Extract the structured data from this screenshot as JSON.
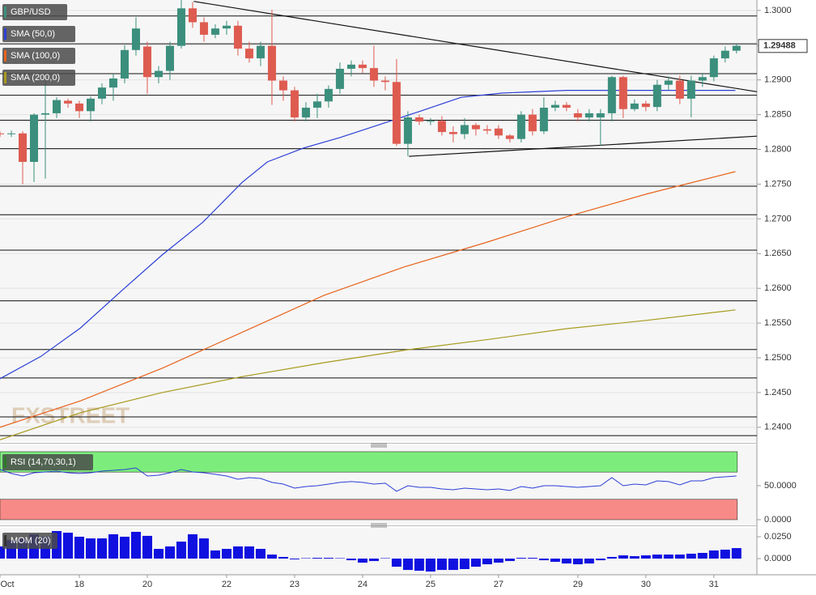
{
  "chart_data": [
    {
      "type": "candlestick",
      "title": "GBP/USD",
      "watermark": "FXSTREET",
      "colors": {
        "up": "#3b8f7c",
        "down": "#de5b50"
      },
      "x": [
        0,
        1,
        2,
        3,
        4,
        5,
        6,
        7,
        8,
        9,
        10,
        11,
        12,
        13,
        14,
        15,
        16,
        17,
        18,
        19,
        20,
        21,
        22,
        23,
        24,
        25,
        26,
        27,
        28,
        29,
        30,
        31,
        32,
        33,
        34,
        35,
        36,
        37,
        38,
        39,
        40,
        41,
        42,
        43,
        44,
        45,
        46,
        47,
        48,
        49,
        50,
        51,
        52,
        53,
        54,
        55,
        56,
        57,
        58,
        59,
        60,
        61,
        62,
        63,
        64,
        65
      ],
      "open": [
        1.2823,
        1.2822,
        1.2823,
        1.2782,
        1.285,
        1.2852,
        1.287,
        1.2866,
        1.2855,
        1.2873,
        1.2889,
        1.2902,
        1.2943,
        1.2948,
        1.2904,
        1.2913,
        1.2949,
        1.3003,
        1.2983,
        1.2965,
        1.2974,
        1.2978,
        1.2945,
        1.2931,
        1.2949,
        1.2899,
        1.2885,
        1.2846,
        1.286,
        1.2869,
        1.2887,
        1.2916,
        1.2922,
        1.2917,
        1.2899,
        1.2897,
        1.2808,
        1.2846,
        1.284,
        1.2841,
        1.2825,
        1.2822,
        1.2835,
        1.2829,
        1.283,
        1.282,
        1.2815,
        1.285,
        1.2826,
        1.286,
        1.2864,
        1.2852,
        1.2846,
        1.2846,
        1.2852,
        1.2904,
        1.2858,
        1.2866,
        1.2861,
        1.2893,
        1.2899,
        1.2873,
        1.2899,
        1.2904,
        1.2931,
        1.2942
      ],
      "high": [
        1.2826,
        1.2827,
        1.2826,
        1.2852,
        1.2898,
        1.2875,
        1.2873,
        1.287,
        1.2876,
        1.2895,
        1.2908,
        1.295,
        1.299,
        1.2955,
        1.292,
        1.2955,
        1.3015,
        1.3012,
        1.299,
        1.298,
        1.2985,
        1.2985,
        1.2955,
        1.2955,
        1.3001,
        1.2905,
        1.289,
        1.2868,
        1.288,
        1.2892,
        1.2925,
        1.2928,
        1.2928,
        1.2949,
        1.2905,
        1.293,
        1.2855,
        1.285,
        1.2845,
        1.2848,
        1.2833,
        1.2845,
        1.2838,
        1.2835,
        1.2835,
        1.2822,
        1.2855,
        1.2858,
        1.2875,
        1.287,
        1.2868,
        1.2858,
        1.2858,
        1.2858,
        1.2906,
        1.2906,
        1.2872,
        1.287,
        1.29,
        1.2905,
        1.2906,
        1.2906,
        1.291,
        1.2935,
        1.2948,
        1.2952
      ],
      "low": [
        1.2818,
        1.2818,
        1.275,
        1.2753,
        1.2758,
        1.2845,
        1.286,
        1.2845,
        1.284,
        1.2865,
        1.287,
        1.2895,
        1.2935,
        1.288,
        1.2895,
        1.29,
        1.2945,
        1.2975,
        1.2955,
        1.296,
        1.2965,
        1.2935,
        1.2925,
        1.292,
        1.2864,
        1.287,
        1.284,
        1.284,
        1.2845,
        1.286,
        1.288,
        1.2905,
        1.291,
        1.289,
        1.2885,
        1.2805,
        1.279,
        1.2835,
        1.2835,
        1.282,
        1.281,
        1.2815,
        1.282,
        1.2822,
        1.2815,
        1.281,
        1.281,
        1.282,
        1.2822,
        1.2855,
        1.2855,
        1.284,
        1.284,
        1.2805,
        1.284,
        1.2845,
        1.2855,
        1.2855,
        1.2855,
        1.2885,
        1.2865,
        1.2846,
        1.289,
        1.2898,
        1.2925,
        1.2938
      ],
      "close": [
        1.2822,
        1.2823,
        1.2782,
        1.285,
        1.2852,
        1.2871,
        1.2866,
        1.2855,
        1.2873,
        1.2889,
        1.2902,
        1.2943,
        1.2974,
        1.2904,
        1.2913,
        1.2949,
        1.3003,
        1.2983,
        1.2965,
        1.2974,
        1.2978,
        1.2945,
        1.2931,
        1.2949,
        1.2899,
        1.2885,
        1.2846,
        1.286,
        1.2869,
        1.2887,
        1.2916,
        1.2922,
        1.2917,
        1.2899,
        1.2897,
        1.2808,
        1.2846,
        1.284,
        1.2841,
        1.2825,
        1.2822,
        1.2835,
        1.2829,
        1.2827,
        1.282,
        1.2815,
        1.285,
        1.2826,
        1.286,
        1.2864,
        1.286,
        1.2846,
        1.2852,
        1.2852,
        1.2904,
        1.2858,
        1.2866,
        1.2861,
        1.2893,
        1.2899,
        1.2873,
        1.2899,
        1.2904,
        1.2931,
        1.2942,
        1.2949
      ],
      "last_price": 1.29488,
      "overlays": [
        {
          "name": "SMA (50,0)",
          "color": "#2b3fd6",
          "x": [
            0,
            3.6,
            7.1,
            10.7,
            14.3,
            17.9,
            21.4,
            23.6,
            26.8,
            30,
            34.3,
            37.1,
            40.7,
            44.3,
            50,
            57.1,
            64.9
          ],
          "values": [
            1.247,
            1.2502,
            1.2543,
            1.2596,
            1.2648,
            1.2695,
            1.2753,
            1.2782,
            1.2802,
            1.2817,
            1.284,
            1.2855,
            1.2875,
            1.2881,
            1.2885,
            1.2885,
            1.2885
          ]
        },
        {
          "name": "SMA (100,0)",
          "color": "#e8621c",
          "x": [
            0,
            7.1,
            14.3,
            21.4,
            28.6,
            35.7,
            42.9,
            50,
            57.1,
            64.9
          ],
          "values": [
            1.24,
            1.2438,
            1.2485,
            1.2537,
            1.259,
            1.2631,
            1.2666,
            1.2703,
            1.2736,
            1.2768
          ]
        },
        {
          "name": "SMA (200,0)",
          "color": "#a89a1e",
          "x": [
            0,
            7.1,
            14.3,
            21.4,
            28.6,
            35.7,
            42.9,
            50,
            57.1,
            64.9
          ],
          "values": [
            1.2382,
            1.2421,
            1.245,
            1.2473,
            1.2493,
            1.2511,
            1.2526,
            1.2542,
            1.2554,
            1.2569
          ]
        }
      ],
      "trendlines": [
        {
          "x": [
            17.1,
            66.8
          ],
          "values": [
            1.3013,
            1.2883
          ]
        },
        {
          "x": [
            36.1,
            66.8
          ],
          "values": [
            1.279,
            1.2819
          ]
        }
      ],
      "levels": [
        1.2992,
        1.2952,
        1.2909,
        1.2878,
        1.2842,
        1.2801,
        1.2747,
        1.2706,
        1.2655,
        1.2582,
        1.2512,
        1.2471,
        1.2415,
        1.2388
      ],
      "xlim": [
        0,
        66.8
      ],
      "xticks": [
        {
          "value": 0,
          "label": "Oct"
        },
        {
          "value": 7,
          "label": "18"
        },
        {
          "value": 13,
          "label": "20"
        },
        {
          "value": 20,
          "label": "22"
        },
        {
          "value": 26,
          "label": "23"
        },
        {
          "value": 32,
          "label": "24"
        },
        {
          "value": 38,
          "label": "25"
        },
        {
          "value": 44,
          "label": "27"
        },
        {
          "value": 51,
          "label": "29"
        },
        {
          "value": 57,
          "label": "30"
        },
        {
          "value": 63,
          "label": "31"
        }
      ],
      "ylim": [
        1.238,
        1.3015
      ],
      "yticks": [
        {
          "value": 1.3,
          "label": "1.3000"
        },
        {
          "value": 1.295,
          "label": "1.2950"
        },
        {
          "value": 1.29,
          "label": "1.2900"
        },
        {
          "value": 1.285,
          "label": "1.2850"
        },
        {
          "value": 1.28,
          "label": "1.2800"
        },
        {
          "value": 1.275,
          "label": "1.2750"
        },
        {
          "value": 1.27,
          "label": "1.2700"
        },
        {
          "value": 1.265,
          "label": "1.2650"
        },
        {
          "value": 1.26,
          "label": "1.2600"
        },
        {
          "value": 1.255,
          "label": "1.2550"
        },
        {
          "value": 1.25,
          "label": "1.2500"
        },
        {
          "value": 1.245,
          "label": "1.2450"
        },
        {
          "value": 1.24,
          "label": "1.2400"
        }
      ],
      "grid": true
    },
    {
      "type": "line",
      "title": "RSI (14,70,30,1)",
      "color": "#2b3fd6",
      "values": [
        73.8,
        67.9,
        64.3,
        69.0,
        70.2,
        71.4,
        69.0,
        67.9,
        69.0,
        71.4,
        72.6,
        73.8,
        76.2,
        64.3,
        65.5,
        69.0,
        73.8,
        70.2,
        69.0,
        66.7,
        64.3,
        59.5,
        61.9,
        60.7,
        54.8,
        52.4,
        46.4,
        48.8,
        50,
        52.4,
        54.8,
        56.0,
        54.8,
        52.4,
        53.6,
        41.7,
        50,
        47.6,
        47.6,
        45.2,
        44.0,
        46.4,
        45.2,
        44.0,
        45.2,
        42.9,
        48.8,
        46.4,
        50,
        50,
        48.8,
        47.6,
        48.8,
        50,
        61.9,
        50,
        52.4,
        51.2,
        57.1,
        56.0,
        51.2,
        57.1,
        57.1,
        61.9,
        63.1,
        64.3
      ],
      "bands": [
        {
          "range": [
            70,
            100
          ],
          "color": "#7ced7c"
        },
        {
          "range": [
            0,
            30
          ],
          "color": "#f78a86"
        }
      ],
      "ylim": [
        -6,
        109.5
      ],
      "yticks": [
        {
          "value": 50,
          "label": "50.0000"
        },
        {
          "value": 0,
          "label": "0.0000"
        }
      ]
    },
    {
      "type": "bar",
      "title": "MOM (20)",
      "color": "#1010e0",
      "values": [
        0.0139,
        0.0213,
        0.0231,
        0.0278,
        0.025,
        0.0315,
        0.0296,
        0.025,
        0.0231,
        0.0231,
        0.0278,
        0.025,
        0.0306,
        0.026,
        0.0111,
        0.0139,
        0.0194,
        0.0278,
        0.0231,
        0.0093,
        0.0111,
        0.0139,
        0.0139,
        0.0111,
        0.0046,
        0.0019,
        -0.0009,
        0.0005,
        0.0009,
        0.0009,
        0.0005,
        -0.0019,
        -0.0046,
        -0.0028,
        0.0005,
        -0.0093,
        -0.013,
        -0.0139,
        -0.0148,
        -0.013,
        -0.013,
        -0.012,
        -0.0093,
        -0.0065,
        -0.0046,
        -0.0028,
        0.0009,
        0.0009,
        -0.0019,
        -0.0037,
        -0.0056,
        -0.0065,
        -0.0056,
        -0.0019,
        0.0019,
        0.0037,
        0.0028,
        0.0037,
        0.0046,
        0.0046,
        0.0046,
        0.0056,
        0.0065,
        0.0093,
        0.0102,
        0.012
      ],
      "ylim": [
        -0.0185,
        0.0352
      ],
      "yticks": [
        {
          "value": 0.025,
          "label": "0.0250"
        },
        {
          "value": 0,
          "label": "0.0000"
        }
      ]
    }
  ]
}
